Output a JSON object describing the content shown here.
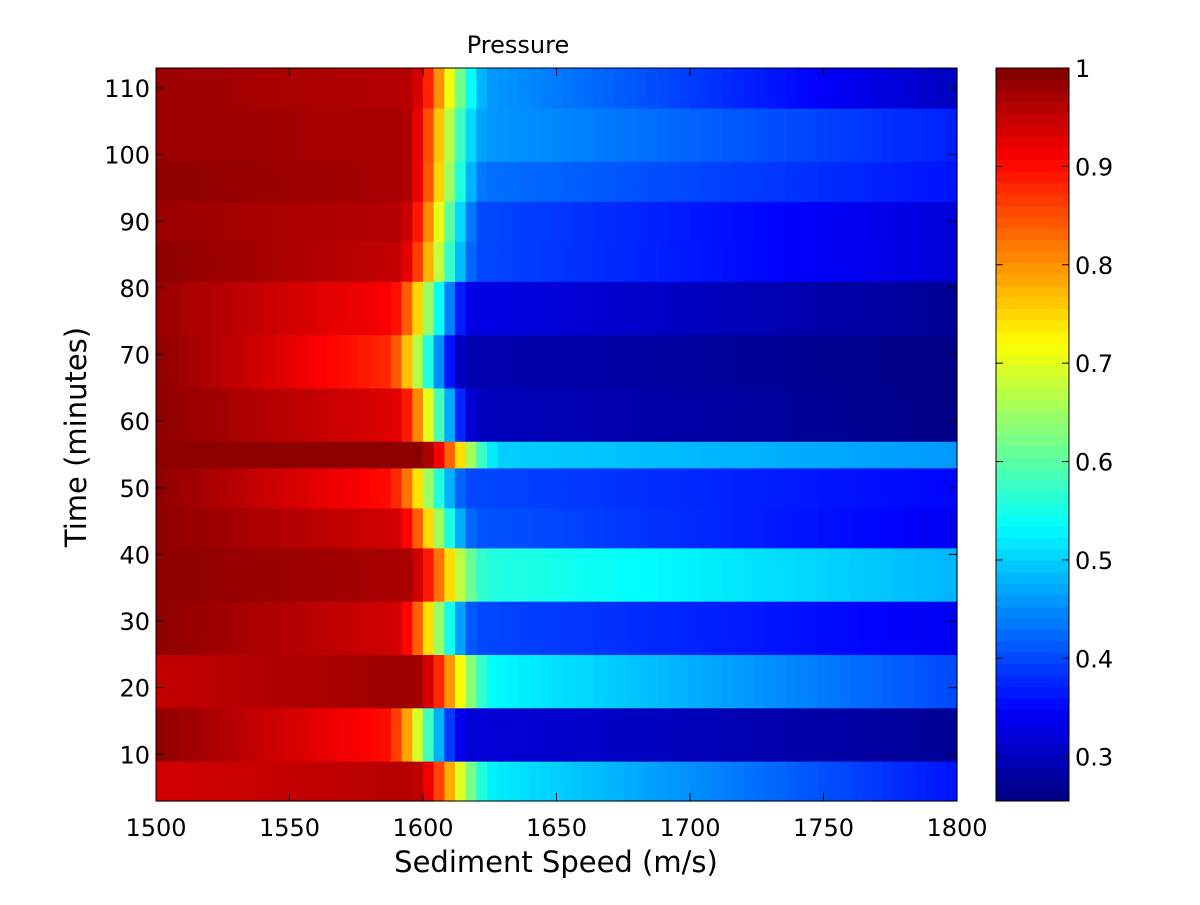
{
  "chart_data": {
    "type": "heatmap",
    "title": "Pressure",
    "xlabel": "Sediment Speed (m/s)",
    "ylabel": "Time (minutes)",
    "xlim": [
      1500,
      1800
    ],
    "ylim": [
      3,
      113
    ],
    "x_ticks": [
      1500,
      1550,
      1600,
      1650,
      1700,
      1750,
      1800
    ],
    "y_ticks": [
      10,
      20,
      30,
      40,
      50,
      60,
      70,
      80,
      90,
      100,
      110
    ],
    "colorbar": {
      "colormap": "jet",
      "clim": [
        0.255,
        1.0
      ],
      "ticks": [
        0.3,
        0.4,
        0.5,
        0.6,
        0.7,
        0.8,
        0.9,
        1
      ],
      "tick_labels": [
        "0.3",
        "0.4",
        "0.5",
        "0.6",
        "0.7",
        "0.8",
        "0.9",
        "1"
      ]
    },
    "grid": false,
    "rows": [
      {
        "y0": 3,
        "y1": 9,
        "left_value": 0.94,
        "mid_value": 0.96,
        "transition_speed": 1608,
        "tail_value": 0.52,
        "end_value": 0.36
      },
      {
        "y0": 9,
        "y1": 17,
        "left_value": 0.99,
        "mid_value": 0.9,
        "transition_speed": 1597,
        "tail_value": 0.32,
        "end_value": 0.27
      },
      {
        "y0": 17,
        "y1": 25,
        "left_value": 0.95,
        "mid_value": 0.98,
        "transition_speed": 1608,
        "tail_value": 0.53,
        "end_value": 0.4
      },
      {
        "y0": 25,
        "y1": 33,
        "left_value": 0.99,
        "mid_value": 0.94,
        "transition_speed": 1601,
        "tail_value": 0.4,
        "end_value": 0.34
      },
      {
        "y0": 33,
        "y1": 41,
        "left_value": 0.99,
        "mid_value": 0.97,
        "transition_speed": 1605,
        "tail_value": 0.56,
        "end_value": 0.48
      },
      {
        "y0": 41,
        "y1": 47,
        "left_value": 0.99,
        "mid_value": 0.94,
        "transition_speed": 1601,
        "tail_value": 0.41,
        "end_value": 0.34
      },
      {
        "y0": 47,
        "y1": 53,
        "left_value": 0.99,
        "mid_value": 0.9,
        "transition_speed": 1598,
        "tail_value": 0.4,
        "end_value": 0.35
      },
      {
        "y0": 53,
        "y1": 57,
        "left_value": 0.99,
        "mid_value": 0.99,
        "transition_speed": 1610,
        "tail_value": 0.5,
        "end_value": 0.46
      },
      {
        "y0": 57,
        "y1": 65,
        "left_value": 0.99,
        "mid_value": 0.93,
        "transition_speed": 1601,
        "tail_value": 0.3,
        "end_value": 0.26
      },
      {
        "y0": 65,
        "y1": 73,
        "left_value": 0.99,
        "mid_value": 0.88,
        "transition_speed": 1597,
        "tail_value": 0.29,
        "end_value": 0.26
      },
      {
        "y0": 73,
        "y1": 81,
        "left_value": 0.98,
        "mid_value": 0.91,
        "transition_speed": 1599,
        "tail_value": 0.33,
        "end_value": 0.27
      },
      {
        "y0": 81,
        "y1": 87,
        "left_value": 0.99,
        "mid_value": 0.95,
        "transition_speed": 1602,
        "tail_value": 0.4,
        "end_value": 0.32
      },
      {
        "y0": 87,
        "y1": 93,
        "left_value": 0.98,
        "mid_value": 0.96,
        "transition_speed": 1603,
        "tail_value": 0.4,
        "end_value": 0.32
      },
      {
        "y0": 93,
        "y1": 99,
        "left_value": 0.99,
        "mid_value": 0.97,
        "transition_speed": 1604,
        "tail_value": 0.43,
        "end_value": 0.36
      },
      {
        "y0": 99,
        "y1": 107,
        "left_value": 0.98,
        "mid_value": 0.97,
        "transition_speed": 1604,
        "tail_value": 0.46,
        "end_value": 0.37
      },
      {
        "y0": 107,
        "y1": 113,
        "left_value": 0.98,
        "mid_value": 0.96,
        "transition_speed": 1606,
        "tail_value": 0.46,
        "end_value": 0.3
      }
    ]
  }
}
